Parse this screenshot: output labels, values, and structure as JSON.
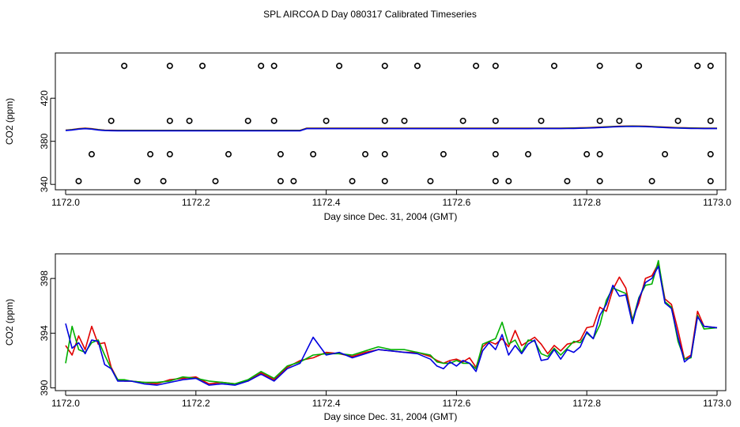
{
  "title": "SPL AIRCOA D  Day 080317  Calibrated Timeseries",
  "colors": {
    "red": "#e00000",
    "green": "#00b000",
    "blue": "#0000e0",
    "axis": "#000000"
  },
  "chart_data": [
    {
      "type": "line",
      "xlabel": "Day since Dec. 31, 2004 (GMT)",
      "ylabel": "CO2 (ppm)",
      "xlim": [
        1172.0,
        1173.0
      ],
      "ylim": [
        335,
        462
      ],
      "xticks": [
        "1172.0",
        "1172.2",
        "1172.4",
        "1172.6",
        "1172.8",
        "1173.0"
      ],
      "yticks": [
        "340",
        "380",
        "420"
      ],
      "series_colors": [
        "#e00000",
        "#00b000",
        "#0000e0"
      ],
      "circle_markers": [
        {
          "x": 1172.09,
          "y": 450
        },
        {
          "x": 1172.16,
          "y": 450
        },
        {
          "x": 1172.21,
          "y": 450
        },
        {
          "x": 1172.3,
          "y": 450
        },
        {
          "x": 1172.32,
          "y": 450
        },
        {
          "x": 1172.42,
          "y": 450
        },
        {
          "x": 1172.49,
          "y": 450
        },
        {
          "x": 1172.54,
          "y": 450
        },
        {
          "x": 1172.63,
          "y": 450
        },
        {
          "x": 1172.66,
          "y": 450
        },
        {
          "x": 1172.75,
          "y": 450
        },
        {
          "x": 1172.82,
          "y": 450
        },
        {
          "x": 1172.88,
          "y": 450
        },
        {
          "x": 1172.97,
          "y": 450
        },
        {
          "x": 1172.99,
          "y": 450
        },
        {
          "x": 1172.07,
          "y": 399
        },
        {
          "x": 1172.16,
          "y": 399
        },
        {
          "x": 1172.19,
          "y": 399
        },
        {
          "x": 1172.28,
          "y": 399
        },
        {
          "x": 1172.32,
          "y": 399
        },
        {
          "x": 1172.4,
          "y": 399
        },
        {
          "x": 1172.49,
          "y": 399
        },
        {
          "x": 1172.52,
          "y": 399
        },
        {
          "x": 1172.61,
          "y": 399
        },
        {
          "x": 1172.66,
          "y": 399
        },
        {
          "x": 1172.73,
          "y": 399
        },
        {
          "x": 1172.82,
          "y": 399
        },
        {
          "x": 1172.85,
          "y": 399
        },
        {
          "x": 1172.94,
          "y": 399
        },
        {
          "x": 1172.99,
          "y": 399
        },
        {
          "x": 1172.04,
          "y": 368
        },
        {
          "x": 1172.13,
          "y": 368
        },
        {
          "x": 1172.16,
          "y": 368
        },
        {
          "x": 1172.25,
          "y": 368
        },
        {
          "x": 1172.33,
          "y": 368
        },
        {
          "x": 1172.38,
          "y": 368
        },
        {
          "x": 1172.46,
          "y": 368
        },
        {
          "x": 1172.49,
          "y": 368
        },
        {
          "x": 1172.58,
          "y": 368
        },
        {
          "x": 1172.66,
          "y": 368
        },
        {
          "x": 1172.71,
          "y": 368
        },
        {
          "x": 1172.8,
          "y": 368
        },
        {
          "x": 1172.82,
          "y": 368
        },
        {
          "x": 1172.92,
          "y": 368
        },
        {
          "x": 1172.99,
          "y": 368
        },
        {
          "x": 1172.02,
          "y": 343
        },
        {
          "x": 1172.11,
          "y": 343
        },
        {
          "x": 1172.15,
          "y": 343
        },
        {
          "x": 1172.23,
          "y": 343
        },
        {
          "x": 1172.33,
          "y": 343
        },
        {
          "x": 1172.35,
          "y": 343
        },
        {
          "x": 1172.44,
          "y": 343
        },
        {
          "x": 1172.49,
          "y": 343
        },
        {
          "x": 1172.56,
          "y": 343
        },
        {
          "x": 1172.66,
          "y": 343
        },
        {
          "x": 1172.68,
          "y": 343
        },
        {
          "x": 1172.77,
          "y": 343
        },
        {
          "x": 1172.82,
          "y": 343
        },
        {
          "x": 1172.9,
          "y": 343
        },
        {
          "x": 1172.99,
          "y": 343
        }
      ]
    },
    {
      "type": "line",
      "xlabel": "Day since Dec. 31, 2004 (GMT)",
      "ylabel": "CO2 (ppm)",
      "xlim": [
        1172.0,
        1173.0
      ],
      "ylim": [
        389.8,
        399.8
      ],
      "xticks": [
        "1172.0",
        "1172.2",
        "1172.4",
        "1172.6",
        "1172.8",
        "1173.0"
      ],
      "yticks": [
        "390",
        "394",
        "398"
      ],
      "x": [
        1172.0,
        1172.01,
        1172.02,
        1172.03,
        1172.04,
        1172.05,
        1172.06,
        1172.07,
        1172.08,
        1172.09,
        1172.1,
        1172.12,
        1172.14,
        1172.16,
        1172.18,
        1172.2,
        1172.22,
        1172.24,
        1172.26,
        1172.28,
        1172.3,
        1172.32,
        1172.34,
        1172.36,
        1172.38,
        1172.4,
        1172.42,
        1172.44,
        1172.46,
        1172.48,
        1172.5,
        1172.52,
        1172.54,
        1172.56,
        1172.57,
        1172.58,
        1172.59,
        1172.6,
        1172.61,
        1172.62,
        1172.63,
        1172.64,
        1172.65,
        1172.66,
        1172.67,
        1172.68,
        1172.69,
        1172.7,
        1172.71,
        1172.72,
        1172.73,
        1172.74,
        1172.75,
        1172.76,
        1172.77,
        1172.78,
        1172.79,
        1172.8,
        1172.81,
        1172.82,
        1172.83,
        1172.84,
        1172.85,
        1172.86,
        1172.87,
        1172.88,
        1172.89,
        1172.9,
        1172.91,
        1172.92,
        1172.93,
        1172.94,
        1172.95,
        1172.96,
        1172.97,
        1172.98,
        1173.0
      ],
      "series": [
        {
          "values": [
            393.1,
            392.4,
            393.8,
            392.8,
            394.5,
            393.2,
            393.3,
            391.5,
            390.6,
            390.5,
            390.5,
            390.4,
            390.3,
            390.6,
            390.7,
            390.8,
            390.3,
            390.4,
            390.3,
            390.5,
            391.1,
            390.6,
            391.5,
            392.0,
            392.2,
            392.6,
            392.5,
            392.3,
            392.6,
            392.8,
            392.7,
            392.6,
            392.6,
            392.3,
            392.0,
            391.8,
            392.0,
            392.1,
            391.9,
            392.2,
            391.5,
            393.0,
            393.4,
            393.2,
            393.6,
            393.0,
            394.2,
            393.1,
            393.4,
            393.7,
            393.2,
            392.5,
            393.1,
            392.7,
            393.2,
            393.3,
            393.5,
            394.4,
            394.5,
            395.9,
            395.6,
            397.2,
            398.1,
            397.3,
            395.0,
            396.2,
            398.0,
            398.2,
            399.1,
            396.5,
            396.1,
            394.2,
            392.1,
            392.4,
            395.6,
            394.5,
            394.4
          ]
        },
        {
          "values": [
            391.8,
            394.5,
            392.8,
            392.6,
            393.3,
            393.5,
            392.4,
            391.4,
            390.6,
            390.6,
            390.5,
            390.4,
            390.4,
            390.5,
            390.8,
            390.7,
            390.5,
            390.4,
            390.3,
            390.6,
            391.2,
            390.7,
            391.6,
            391.9,
            392.4,
            392.5,
            392.5,
            392.4,
            392.7,
            393.0,
            392.8,
            392.8,
            392.6,
            392.4,
            391.9,
            391.8,
            391.8,
            392.0,
            391.8,
            391.8,
            391.4,
            393.2,
            393.4,
            393.6,
            394.8,
            393.2,
            393.5,
            392.6,
            393.5,
            393.4,
            392.5,
            392.3,
            392.9,
            392.4,
            392.9,
            393.4,
            393.3,
            394.0,
            393.6,
            394.6,
            396.4,
            397.3,
            397.1,
            396.9,
            394.9,
            396.6,
            397.5,
            397.6,
            399.3,
            396.3,
            395.9,
            393.4,
            392.1,
            392.2,
            395.3,
            394.3,
            394.4
          ]
        },
        {
          "values": [
            394.7,
            392.9,
            393.3,
            392.5,
            393.5,
            393.4,
            391.7,
            391.4,
            390.5,
            390.5,
            390.5,
            390.3,
            390.2,
            390.4,
            390.6,
            390.7,
            390.2,
            390.3,
            390.2,
            390.5,
            391.0,
            390.5,
            391.4,
            391.8,
            393.7,
            392.4,
            392.6,
            392.2,
            392.5,
            392.8,
            392.7,
            392.6,
            392.5,
            392.1,
            391.6,
            391.4,
            391.9,
            391.6,
            392.0,
            391.8,
            391.2,
            392.7,
            393.3,
            392.8,
            393.9,
            392.4,
            393.1,
            392.5,
            393.2,
            393.5,
            392.0,
            392.1,
            392.8,
            392.1,
            392.8,
            392.6,
            393.0,
            394.1,
            393.6,
            395.3,
            396.1,
            397.5,
            396.7,
            396.8,
            394.7,
            396.5,
            397.7,
            398.0,
            398.9,
            396.2,
            395.8,
            393.7,
            391.9,
            392.3,
            395.2,
            394.5,
            394.4
          ]
        }
      ]
    }
  ]
}
